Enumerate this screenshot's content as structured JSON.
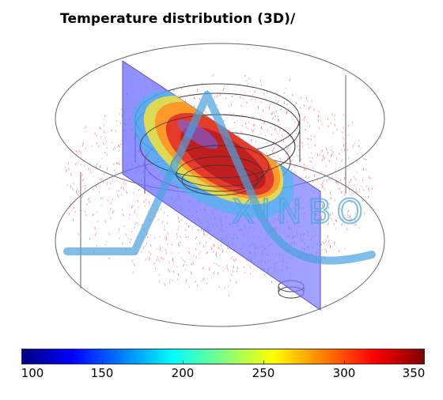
{
  "title": "Temperature distribution (3D)/",
  "watermark": {
    "text": "XINBO",
    "color": "#4aa3df"
  },
  "colorbar": {
    "ticks": [
      "100",
      "150",
      "200",
      "250",
      "300",
      "350"
    ],
    "min": 100,
    "max": 350,
    "colors": [
      "#00007f",
      "#0000ff",
      "#007fff",
      "#00ffff",
      "#7fff7f",
      "#ffff00",
      "#ff7f00",
      "#ff0000",
      "#7f0000"
    ]
  },
  "colors": {
    "outline": "#555555",
    "arrows": "#e04040",
    "slice": "#6666ff",
    "hot": "#c81e1e",
    "ring": "#ff9a2a"
  }
}
